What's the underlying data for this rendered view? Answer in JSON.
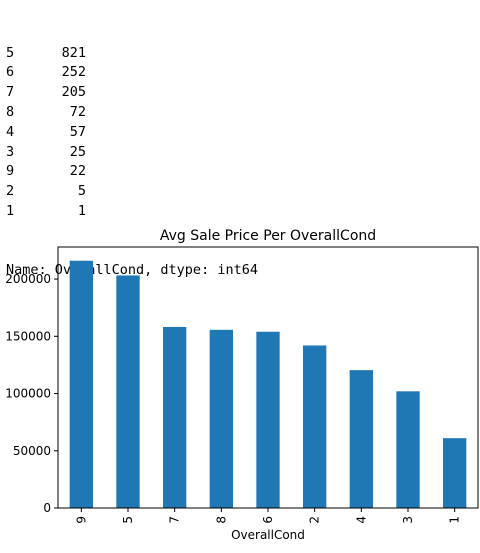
{
  "value_counts": {
    "rows": [
      {
        "index": "5",
        "count": "821"
      },
      {
        "index": "6",
        "count": "252"
      },
      {
        "index": "7",
        "count": "205"
      },
      {
        "index": "8",
        "count": "72"
      },
      {
        "index": "4",
        "count": "57"
      },
      {
        "index": "3",
        "count": "25"
      },
      {
        "index": "9",
        "count": "22"
      },
      {
        "index": "2",
        "count": "5"
      },
      {
        "index": "1",
        "count": "1"
      }
    ],
    "footer": "Name: OverallCond, dtype: int64"
  },
  "chart_data": {
    "type": "bar",
    "title": "Avg Sale Price Per OverallCond",
    "xlabel": "OverallCond",
    "ylabel": "",
    "categories": [
      "9",
      "5",
      "7",
      "8",
      "6",
      "2",
      "4",
      "3",
      "1"
    ],
    "values": [
      216005,
      203147,
      158146,
      155652,
      153962,
      141986,
      120438,
      101929,
      61000
    ],
    "ylim": [
      0,
      228000
    ],
    "yticks": [
      0,
      50000,
      100000,
      150000,
      200000
    ],
    "bar_color": "#1f77b4",
    "grid": false,
    "legend": "none"
  }
}
